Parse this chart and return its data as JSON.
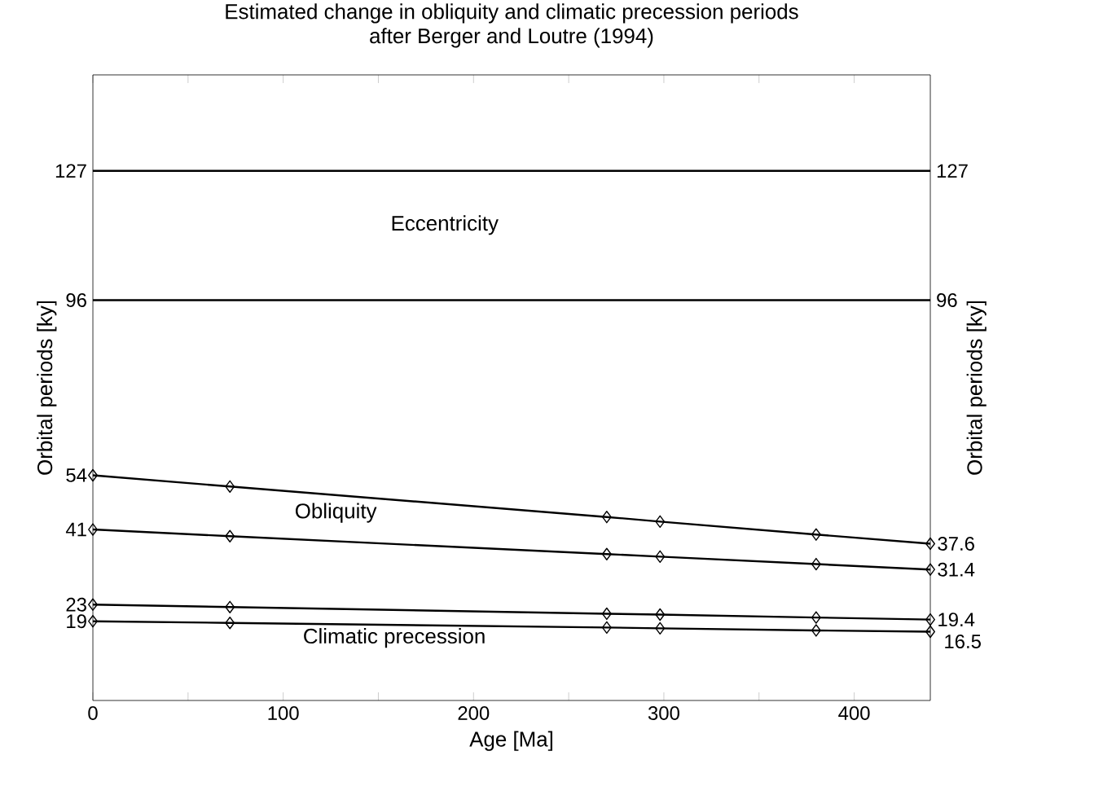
{
  "chart_data": {
    "type": "line",
    "title": "Estimated change in obliquity and climatic precession periods\nafter Berger and Loutre (1994)",
    "xlabel": "Age [Ma]",
    "ylabel": "Orbital periods [ky]",
    "y2label": "Orbital periods [ky]",
    "xlim": [
      0,
      440
    ],
    "xticks": [
      0,
      {
        "value": 50,
        "label": null
      },
      100,
      {
        "value": 150,
        "label": null
      },
      200,
      {
        "value": 250,
        "label": null
      },
      300,
      {
        "value": 350,
        "label": null
      },
      400
    ],
    "ylim": [
      0,
      150
    ],
    "yticks": [
      19,
      23,
      41,
      54,
      96,
      127
    ],
    "y2lim": [
      0,
      150
    ],
    "y2ticks": [
      96,
      127
    ],
    "grid": false,
    "legend": false,
    "line_style": "solid",
    "series": [
      {
        "color": "#000000",
        "marker": "none",
        "x": [
          0,
          440
        ],
        "values": [
          127,
          127
        ]
      },
      {
        "color": "#000000",
        "marker": "none",
        "x": [
          0,
          440
        ],
        "values": [
          96,
          96
        ]
      },
      {
        "color": "#000000",
        "marker": "diamond",
        "x": [
          0,
          72,
          270,
          298,
          380,
          440
        ],
        "values": [
          54,
          51.3,
          44,
          42.9,
          39.8,
          37.6
        ],
        "value_labels": [
          null,
          null,
          null,
          null,
          null,
          "37.6"
        ]
      },
      {
        "color": "#000000",
        "marker": "diamond",
        "x": [
          0,
          72,
          270,
          298,
          380,
          440
        ],
        "values": [
          41,
          39.4,
          35.1,
          34.5,
          32.7,
          31.4
        ],
        "value_labels": [
          null,
          null,
          null,
          null,
          null,
          "31.4"
        ]
      },
      {
        "color": "#000000",
        "marker": "diamond",
        "x": [
          0,
          72,
          270,
          298,
          380,
          440
        ],
        "values": [
          23,
          22.4,
          20.8,
          20.6,
          19.9,
          19.4
        ],
        "value_labels": [
          null,
          null,
          null,
          null,
          null,
          "19.4"
        ]
      },
      {
        "color": "#000000",
        "marker": "diamond",
        "x": [
          0,
          72,
          270,
          298,
          380,
          440
        ],
        "values": [
          19,
          18.6,
          17.5,
          17.3,
          16.8,
          16.5
        ],
        "value_labels": [
          null,
          null,
          null,
          null,
          null,
          "16.5"
        ]
      }
    ],
    "annotations": [
      "Eccentricity",
      "Obliquity",
      "Climatic precession"
    ]
  }
}
